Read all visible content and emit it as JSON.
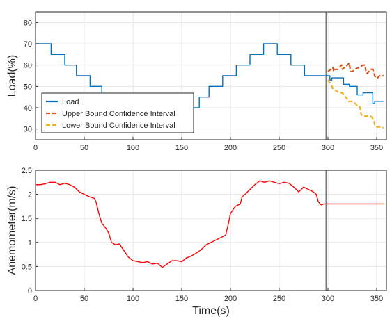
{
  "chart_data": [
    {
      "type": "line",
      "ylabel": "Load(%)",
      "xlabel": "",
      "xlim": [
        0,
        360
      ],
      "ylim": [
        25,
        85
      ],
      "xticks": [
        0,
        50,
        100,
        150,
        200,
        250,
        300,
        350
      ],
      "yticks": [
        30,
        40,
        50,
        60,
        70,
        80
      ],
      "grid": true,
      "legend_position": "bottom-left",
      "vline_x": 298,
      "series": [
        {
          "name": "Load",
          "color": "#0072BD",
          "style": "solid",
          "points": [
            [
              0,
              70
            ],
            [
              16,
              70
            ],
            [
              16,
              65
            ],
            [
              30,
              65
            ],
            [
              30,
              60
            ],
            [
              42,
              60
            ],
            [
              42,
              55
            ],
            [
              56,
              55
            ],
            [
              56,
              50
            ],
            [
              68,
              50
            ],
            [
              68,
              45
            ],
            [
              82,
              45
            ],
            [
              82,
              40
            ],
            [
              96,
              40
            ],
            [
              96,
              35
            ],
            [
              110,
              35
            ],
            [
              110,
              30
            ],
            [
              124,
              30
            ],
            [
              124,
              35
            ],
            [
              140,
              35
            ],
            [
              140,
              38
            ],
            [
              152,
              38
            ],
            [
              152,
              40
            ],
            [
              168,
              40
            ],
            [
              168,
              45
            ],
            [
              178,
              45
            ],
            [
              178,
              50
            ],
            [
              192,
              50
            ],
            [
              192,
              55
            ],
            [
              206,
              55
            ],
            [
              206,
              60
            ],
            [
              220,
              60
            ],
            [
              220,
              65
            ],
            [
              234,
              65
            ],
            [
              234,
              70
            ],
            [
              248,
              70
            ],
            [
              248,
              65
            ],
            [
              262,
              65
            ],
            [
              262,
              60
            ],
            [
              276,
              60
            ],
            [
              276,
              55
            ],
            [
              298,
              55
            ],
            [
              300,
              55
            ],
            [
              302,
              55
            ],
            [
              302,
              53
            ],
            [
              304,
              53
            ],
            [
              304,
              54
            ],
            [
              316,
              54
            ],
            [
              316,
              51
            ],
            [
              322,
              51
            ],
            [
              322,
              50
            ],
            [
              330,
              50
            ],
            [
              330,
              46
            ],
            [
              336,
              46
            ],
            [
              336,
              47
            ],
            [
              346,
              47
            ],
            [
              346,
              42
            ],
            [
              348,
              42
            ],
            [
              348,
              43
            ],
            [
              357,
              43
            ]
          ]
        },
        {
          "name": "Upper Bound Confidence Interval",
          "color": "#D95319",
          "style": "dashed",
          "points": [
            [
              300,
              57
            ],
            [
              303,
              58
            ],
            [
              305,
              59
            ],
            [
              306,
              57
            ],
            [
              307,
              58
            ],
            [
              310,
              58
            ],
            [
              312,
              59
            ],
            [
              314,
              60
            ],
            [
              315,
              58
            ],
            [
              317,
              59
            ],
            [
              320,
              60
            ],
            [
              322,
              61
            ],
            [
              323,
              57
            ],
            [
              325,
              57
            ],
            [
              328,
              58
            ],
            [
              332,
              59
            ],
            [
              336,
              60
            ],
            [
              338,
              60
            ],
            [
              339,
              57
            ],
            [
              340,
              56
            ],
            [
              342,
              57
            ],
            [
              344,
              58
            ],
            [
              346,
              58
            ],
            [
              348,
              55
            ],
            [
              349,
              54
            ],
            [
              351,
              54
            ],
            [
              353,
              55
            ],
            [
              357,
              55
            ]
          ]
        },
        {
          "name": "Lower Bound Confidence Interval",
          "color": "#EDB120",
          "style": "dashed",
          "points": [
            [
              300,
              53
            ],
            [
              303,
              51
            ],
            [
              304,
              50
            ],
            [
              305,
              49
            ],
            [
              308,
              48
            ],
            [
              312,
              47
            ],
            [
              314,
              47
            ],
            [
              315,
              47
            ],
            [
              316,
              46
            ],
            [
              318,
              45
            ],
            [
              320,
              44
            ],
            [
              321,
              43
            ],
            [
              324,
              43
            ],
            [
              328,
              42
            ],
            [
              330,
              41
            ],
            [
              332,
              41
            ],
            [
              333,
              40
            ],
            [
              334,
              37
            ],
            [
              336,
              36
            ],
            [
              340,
              36
            ],
            [
              344,
              36
            ],
            [
              346,
              35
            ],
            [
              347,
              34
            ],
            [
              348,
              32
            ],
            [
              350,
              31
            ],
            [
              354,
              31
            ],
            [
              357,
              30.5
            ]
          ]
        }
      ]
    },
    {
      "type": "line",
      "ylabel": "Anemometer(m/s)",
      "xlabel": "Time(s)",
      "xlim": [
        0,
        360
      ],
      "ylim": [
        0,
        2.5
      ],
      "xticks": [
        0,
        50,
        100,
        150,
        200,
        250,
        300,
        350
      ],
      "yticks": [
        0,
        0.5,
        1,
        1.5,
        2,
        2.5
      ],
      "grid": true,
      "vline_x": 298,
      "series": [
        {
          "name": "",
          "color": "#FF0000",
          "style": "solid",
          "points": [
            [
              0,
              2.2
            ],
            [
              5,
              2.2
            ],
            [
              10,
              2.22
            ],
            [
              15,
              2.25
            ],
            [
              20,
              2.25
            ],
            [
              25,
              2.2
            ],
            [
              30,
              2.23
            ],
            [
              35,
              2.2
            ],
            [
              40,
              2.15
            ],
            [
              45,
              2.05
            ],
            [
              50,
              2.0
            ],
            [
              55,
              1.95
            ],
            [
              60,
              1.92
            ],
            [
              62,
              1.85
            ],
            [
              65,
              1.6
            ],
            [
              68,
              1.4
            ],
            [
              72,
              1.3
            ],
            [
              75,
              1.2
            ],
            [
              78,
              1.0
            ],
            [
              82,
              0.95
            ],
            [
              86,
              0.97
            ],
            [
              90,
              0.85
            ],
            [
              95,
              0.7
            ],
            [
              100,
              0.62
            ],
            [
              105,
              0.6
            ],
            [
              110,
              0.58
            ],
            [
              115,
              0.6
            ],
            [
              120,
              0.55
            ],
            [
              125,
              0.57
            ],
            [
              130,
              0.48
            ],
            [
              135,
              0.55
            ],
            [
              140,
              0.62
            ],
            [
              145,
              0.62
            ],
            [
              150,
              0.6
            ],
            [
              155,
              0.68
            ],
            [
              160,
              0.72
            ],
            [
              165,
              0.78
            ],
            [
              170,
              0.85
            ],
            [
              175,
              0.95
            ],
            [
              180,
              1.0
            ],
            [
              185,
              1.05
            ],
            [
              190,
              1.1
            ],
            [
              195,
              1.15
            ],
            [
              198,
              1.4
            ],
            [
              200,
              1.6
            ],
            [
              205,
              1.75
            ],
            [
              210,
              1.8
            ],
            [
              212,
              1.95
            ],
            [
              215,
              2.0
            ],
            [
              220,
              2.1
            ],
            [
              225,
              2.2
            ],
            [
              230,
              2.28
            ],
            [
              235,
              2.25
            ],
            [
              240,
              2.28
            ],
            [
              245,
              2.25
            ],
            [
              250,
              2.22
            ],
            [
              255,
              2.25
            ],
            [
              260,
              2.23
            ],
            [
              265,
              2.15
            ],
            [
              270,
              2.05
            ],
            [
              275,
              2.15
            ],
            [
              280,
              2.1
            ],
            [
              285,
              2.05
            ],
            [
              288,
              2.0
            ],
            [
              290,
              1.85
            ],
            [
              293,
              1.78
            ],
            [
              296,
              1.8
            ],
            [
              298,
              1.8
            ],
            [
              305,
              1.8
            ],
            [
              320,
              1.8
            ],
            [
              340,
              1.8
            ],
            [
              358,
              1.8
            ]
          ]
        }
      ]
    }
  ]
}
